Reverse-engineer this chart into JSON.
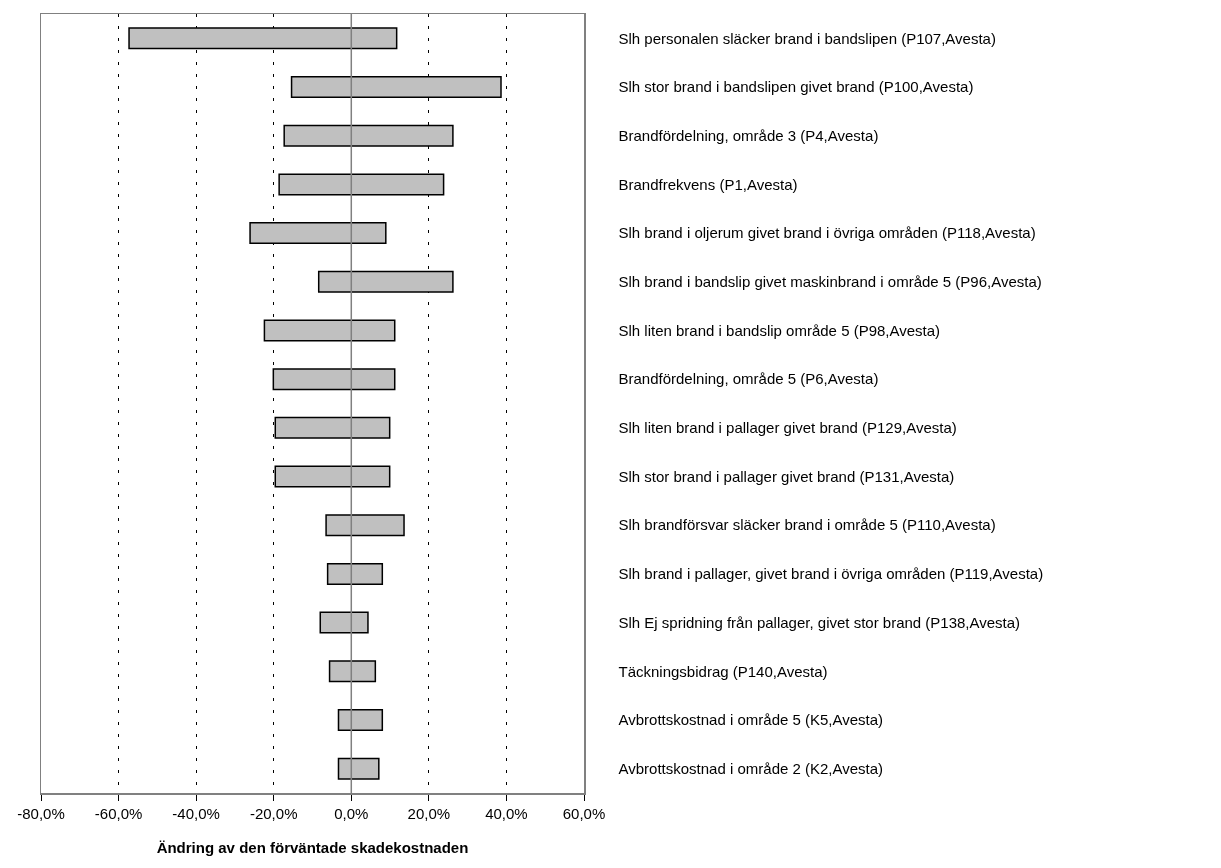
{
  "chart_data": {
    "type": "bar",
    "orientation": "horizontal",
    "xlabel": "Ändring av den förväntade skadekostnaden",
    "categories": [
      "Slh personalen släcker brand i bandslipen (P107,Avesta)",
      "Slh stor brand i bandslipen givet brand (P100,Avesta)",
      "Brandfördelning, område 3 (P4,Avesta)",
      "Brandfrekvens (P1,Avesta)",
      "Slh brand i oljerum givet brand i övriga områden (P118,Avesta)",
      "Slh brand i bandslip givet maskinbrand i område 5 (P96,Avesta)",
      "Slh liten brand i bandslip område 5 (P98,Avesta)",
      "Brandfördelning, område 5 (P6,Avesta)",
      "Slh liten brand i pallager givet brand (P129,Avesta)",
      "Slh stor brand i pallager givet brand (P131,Avesta)",
      "Slh brandförsvar släcker brand i område 5 (P110,Avesta)",
      "Slh brand i pallager, givet brand i övriga områden (P119,Avesta)",
      "Slh Ej spridning från pallager, givet stor brand (P138,Avesta)",
      "Täckningsbidrag (P140,Avesta)",
      "Avbrottskostnad i område 5 (K5,Avesta)",
      "Avbrottskostnad i område 2 (K2,Avesta)"
    ],
    "base": [
      -57.3,
      -15.4,
      -17.3,
      -18.6,
      -26.1,
      -8.4,
      -22.4,
      -20.1,
      -19.6,
      -19.6,
      -6.5,
      -6.1,
      -8.0,
      -5.6,
      -3.3,
      -3.3
    ],
    "values": [
      69.0,
      54.0,
      43.5,
      42.4,
      35.0,
      34.6,
      33.6,
      31.3,
      29.5,
      29.5,
      20.1,
      14.1,
      12.3,
      11.8,
      11.3,
      10.4
    ],
    "color": "#c0c0c0",
    "xlim": [
      -80,
      60
    ],
    "xticks": [
      {
        "value": -80,
        "label": "-80,0%"
      },
      {
        "value": -60,
        "label": "-60,0%"
      },
      {
        "value": -40,
        "label": "-40,0%"
      },
      {
        "value": -20,
        "label": "-20,0%"
      },
      {
        "value": 0,
        "label": "0,0%"
      },
      {
        "value": 20,
        "label": "20,0%"
      },
      {
        "value": 40,
        "label": "40,0%"
      },
      {
        "value": 60,
        "label": "60,0%"
      }
    ],
    "ref_lines": [
      {
        "axis": "x",
        "value": 0,
        "color": "#808080",
        "line_style": "solid"
      }
    ],
    "grid": "x"
  }
}
